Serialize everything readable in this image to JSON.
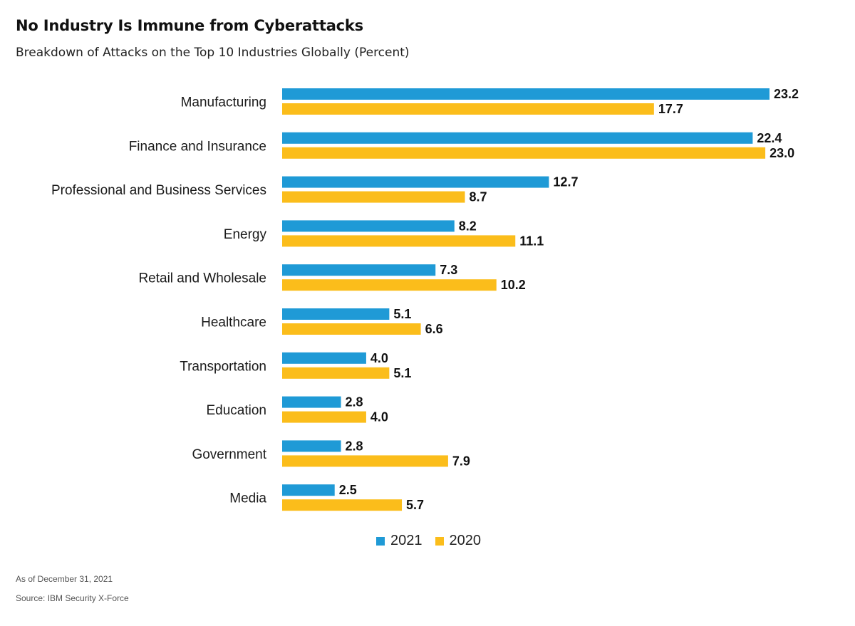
{
  "header": {
    "title": "No Industry Is Immune from Cyberattacks",
    "subtitle": "Breakdown of Attacks on the Top 10 Industries Globally (Percent)"
  },
  "footer": {
    "as_of": "As of December 31, 2021",
    "source": "Source: IBM Security X-Force"
  },
  "colors": {
    "series_2021": "#1f9ad6",
    "series_2020": "#fbbd1b"
  },
  "chart_data": {
    "type": "bar",
    "orientation": "horizontal",
    "title": "No Industry Is Immune from Cyberattacks",
    "subtitle": "Breakdown of Attacks on the Top 10 Industries Globally (Percent)",
    "categories": [
      "Manufacturing",
      "Finance and Insurance",
      "Professional and Business Services",
      "Energy",
      "Retail and Wholesale",
      "Healthcare",
      "Transportation",
      "Education",
      "Government",
      "Media"
    ],
    "series": [
      {
        "name": "2021",
        "values": [
          23.2,
          22.4,
          12.7,
          8.2,
          7.3,
          5.1,
          4.0,
          2.8,
          2.8,
          2.5
        ]
      },
      {
        "name": "2020",
        "values": [
          17.7,
          23.0,
          8.7,
          11.1,
          10.2,
          6.6,
          5.1,
          4.0,
          7.9,
          5.7
        ]
      }
    ],
    "xlim": [
      0,
      23.2
    ],
    "grid": false,
    "legend_position": "bottom-center"
  }
}
